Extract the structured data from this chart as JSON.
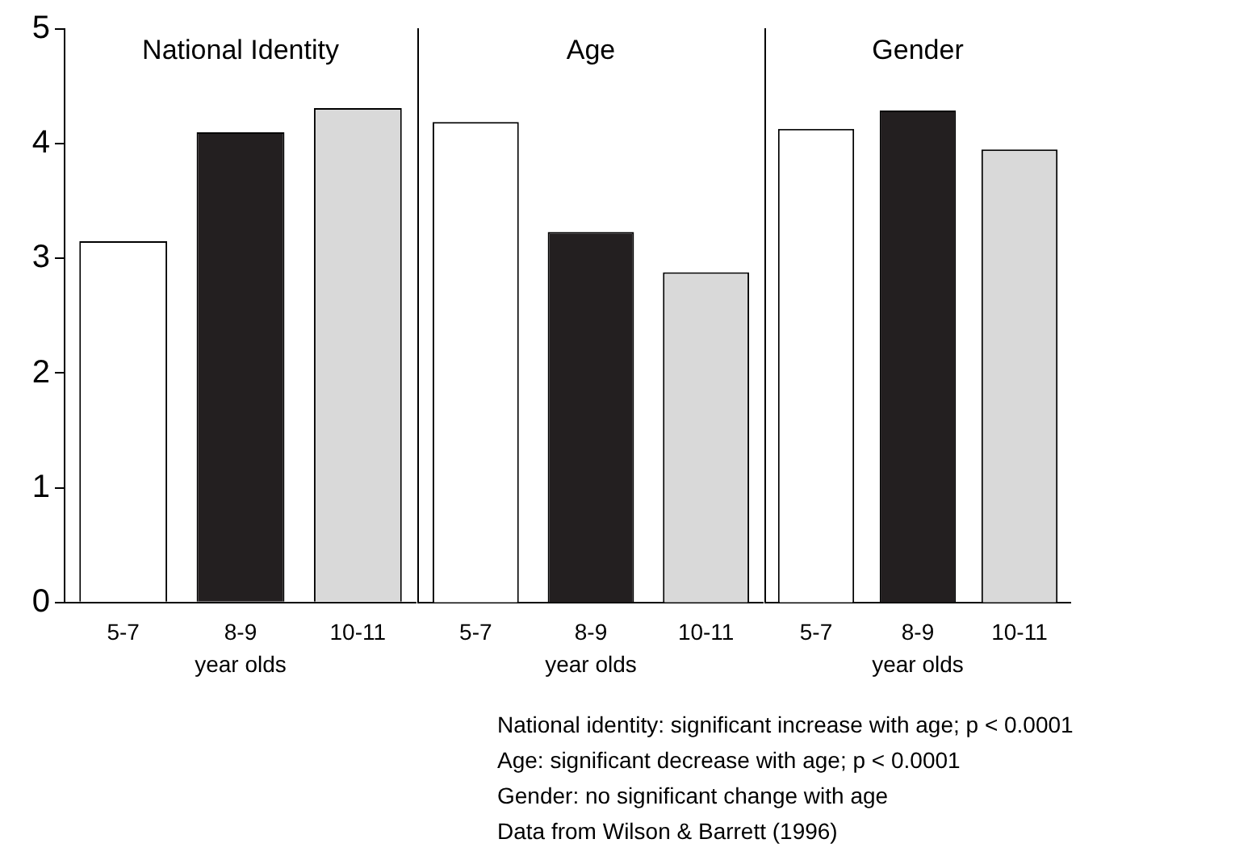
{
  "chart_data": [
    {
      "type": "bar",
      "title": "National Identity",
      "categories": [
        "5-7",
        "8-9",
        "10-11"
      ],
      "values": [
        3.15,
        4.1,
        4.31
      ],
      "colors": [
        "#ffffff",
        "#231f20",
        "#d9d9d9"
      ],
      "xlabel": "year olds",
      "ylim": [
        0,
        5
      ],
      "yticks": [
        0,
        1,
        2,
        3,
        4,
        5
      ]
    },
    {
      "type": "bar",
      "title": "Age",
      "categories": [
        "5-7",
        "8-9",
        "10-11"
      ],
      "values": [
        4.19,
        3.23,
        2.88
      ],
      "colors": [
        "#ffffff",
        "#231f20",
        "#d9d9d9"
      ],
      "xlabel": "year olds",
      "ylim": [
        0,
        5
      ],
      "yticks": [
        0,
        1,
        2,
        3,
        4,
        5
      ],
      "tick_labels": "x"
    },
    {
      "type": "bar",
      "title": "Gender",
      "categories": [
        "5-7",
        "8-9",
        "10-11"
      ],
      "values": [
        4.13,
        4.29,
        3.95
      ],
      "colors": [
        "#ffffff",
        "#231f20",
        "#d9d9d9"
      ],
      "xlabel": "year olds",
      "ylim": [
        0,
        5
      ],
      "yticks": [
        0,
        1,
        2,
        3,
        4,
        5
      ],
      "tick_labels": "x",
      "annotations": [
        "National identity: significant increase with age; p < 0.0001",
        "Age: significant decrease with age; p < 0.0001",
        "Gender: no significant change with age",
        "Data from Wilson & Barrett (1996)"
      ]
    }
  ]
}
